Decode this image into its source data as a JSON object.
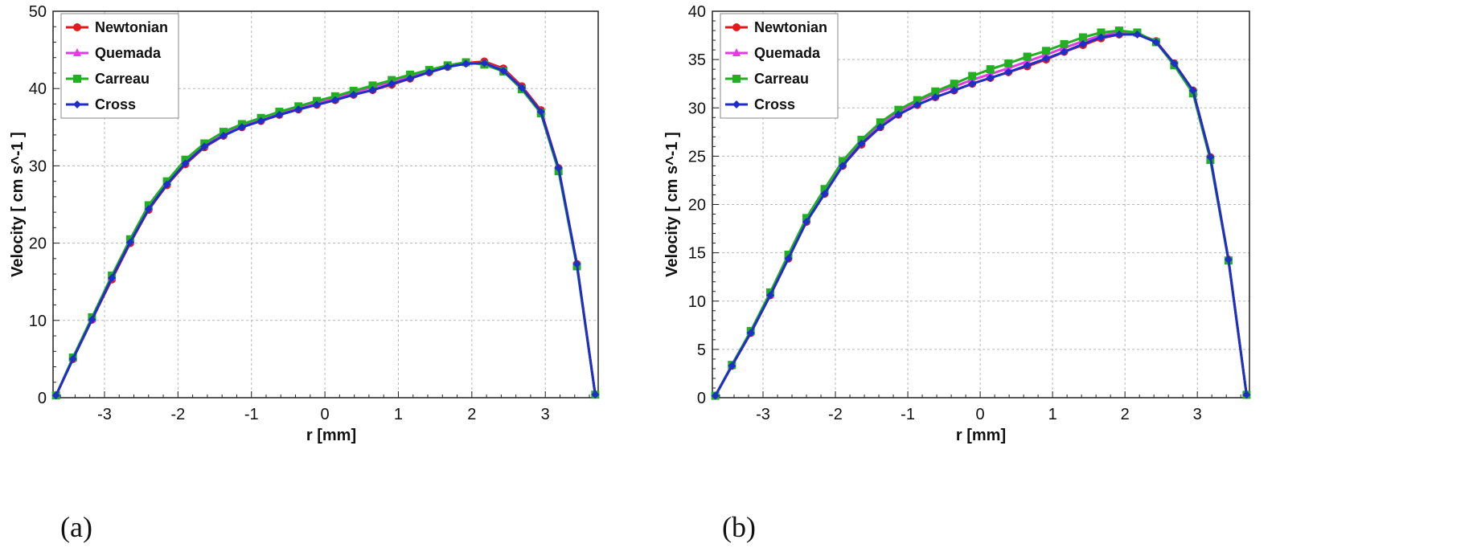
{
  "figure": {
    "panels": [
      {
        "panel_label": "(a)"
      },
      {
        "panel_label": "(b)"
      }
    ]
  },
  "chart_data": [
    {
      "type": "line",
      "xlabel": "r [mm]",
      "ylabel": "Velocity [ cm s^-1 ]",
      "xlim": [
        -3.7,
        3.72
      ],
      "ylim": [
        0,
        50
      ],
      "xticks": [
        -3,
        -2,
        -1,
        0,
        1,
        2,
        3
      ],
      "yticks": [
        0,
        10,
        20,
        30,
        40,
        50
      ],
      "grid": true,
      "legend": "top-left",
      "x": [
        -3.66,
        -3.43,
        -3.17,
        -2.9,
        -2.65,
        -2.4,
        -2.15,
        -1.9,
        -1.64,
        -1.38,
        -1.13,
        -0.87,
        -0.62,
        -0.36,
        -0.11,
        0.14,
        0.39,
        0.65,
        0.91,
        1.16,
        1.42,
        1.67,
        1.92,
        2.17,
        2.43,
        2.68,
        2.94,
        3.18,
        3.43,
        3.68
      ],
      "series": [
        {
          "name": "Newtonian",
          "color": "#e31a1c",
          "marker": "circle",
          "values": [
            0.3,
            5.0,
            10.1,
            15.3,
            20.0,
            24.3,
            27.5,
            30.2,
            32.4,
            33.9,
            35.0,
            35.8,
            36.6,
            37.3,
            37.9,
            38.5,
            39.2,
            39.8,
            40.5,
            41.3,
            42.1,
            42.8,
            43.3,
            43.5,
            42.6,
            40.3,
            37.2,
            29.7,
            17.3,
            0.4
          ]
        },
        {
          "name": "Quemada",
          "color": "#e838e8",
          "marker": "triangle",
          "values": [
            0.3,
            5.1,
            10.2,
            15.6,
            20.3,
            24.6,
            27.8,
            30.5,
            32.6,
            34.1,
            35.2,
            36.0,
            36.8,
            37.5,
            38.2,
            38.8,
            39.5,
            40.2,
            40.9,
            41.6,
            42.3,
            42.9,
            43.3,
            43.3,
            42.4,
            40.1,
            37.0,
            29.5,
            17.2,
            0.4
          ]
        },
        {
          "name": "Carreau",
          "color": "#22b022",
          "marker": "square",
          "values": [
            0.3,
            5.2,
            10.4,
            15.8,
            20.5,
            24.9,
            28.0,
            30.8,
            32.9,
            34.4,
            35.4,
            36.2,
            37.0,
            37.7,
            38.4,
            39.0,
            39.7,
            40.4,
            41.1,
            41.8,
            42.4,
            43.0,
            43.4,
            43.1,
            42.2,
            39.9,
            36.8,
            29.3,
            17.0,
            0.4
          ]
        },
        {
          "name": "Cross",
          "color": "#1f2ec9",
          "marker": "diamond",
          "values": [
            0.3,
            5.0,
            10.1,
            15.5,
            20.1,
            24.4,
            27.6,
            30.3,
            32.5,
            33.9,
            35.0,
            35.8,
            36.6,
            37.3,
            37.9,
            38.5,
            39.2,
            39.8,
            40.6,
            41.3,
            42.1,
            42.8,
            43.2,
            43.3,
            42.3,
            40.1,
            37.0,
            29.7,
            17.3,
            0.4
          ]
        }
      ]
    },
    {
      "type": "line",
      "xlabel": "r [mm]",
      "ylabel": "Velocity [ cm s^-1 ]",
      "xlim": [
        -3.7,
        3.72
      ],
      "ylim": [
        0,
        40
      ],
      "xticks": [
        -3,
        -2,
        -1,
        0,
        1,
        2,
        3
      ],
      "yticks": [
        0,
        5,
        10,
        15,
        20,
        25,
        30,
        35,
        40
      ],
      "grid": true,
      "legend": "top-left",
      "x": [
        -3.66,
        -3.43,
        -3.17,
        -2.9,
        -2.65,
        -2.4,
        -2.15,
        -1.9,
        -1.64,
        -1.38,
        -1.13,
        -0.87,
        -0.62,
        -0.36,
        -0.11,
        0.14,
        0.39,
        0.65,
        0.91,
        1.16,
        1.42,
        1.67,
        1.92,
        2.17,
        2.43,
        2.68,
        2.94,
        3.18,
        3.43,
        3.68
      ],
      "series": [
        {
          "name": "Newtonian",
          "color": "#e31a1c",
          "marker": "circle",
          "values": [
            0.2,
            3.3,
            6.7,
            10.6,
            14.4,
            18.2,
            21.1,
            24.0,
            26.2,
            28.0,
            29.3,
            30.3,
            31.1,
            31.8,
            32.5,
            33.1,
            33.7,
            34.3,
            35.0,
            35.8,
            36.5,
            37.2,
            37.6,
            37.7,
            36.9,
            34.6,
            31.8,
            24.9,
            14.3,
            0.3
          ]
        },
        {
          "name": "Quemada",
          "color": "#e838e8",
          "marker": "triangle",
          "values": [
            0.2,
            3.3,
            6.8,
            10.7,
            14.6,
            18.4,
            21.4,
            24.3,
            26.5,
            28.3,
            29.6,
            30.6,
            31.5,
            32.2,
            32.9,
            33.5,
            34.1,
            34.8,
            35.5,
            36.2,
            36.9,
            37.5,
            37.8,
            37.7,
            36.8,
            34.5,
            31.6,
            24.7,
            14.2,
            0.3
          ]
        },
        {
          "name": "Carreau",
          "color": "#22b022",
          "marker": "square",
          "values": [
            0.2,
            3.4,
            6.9,
            10.9,
            14.8,
            18.6,
            21.6,
            24.5,
            26.7,
            28.5,
            29.8,
            30.8,
            31.7,
            32.5,
            33.3,
            34.0,
            34.6,
            35.3,
            35.9,
            36.6,
            37.3,
            37.8,
            38.0,
            37.8,
            36.8,
            34.4,
            31.5,
            24.6,
            14.2,
            0.3
          ]
        },
        {
          "name": "Cross",
          "color": "#1f2ec9",
          "marker": "diamond",
          "values": [
            0.2,
            3.3,
            6.7,
            10.6,
            14.4,
            18.2,
            21.1,
            24.0,
            26.3,
            28.0,
            29.3,
            30.3,
            31.1,
            31.8,
            32.5,
            33.1,
            33.7,
            34.4,
            35.1,
            35.8,
            36.6,
            37.3,
            37.6,
            37.6,
            36.8,
            34.6,
            31.8,
            24.9,
            14.3,
            0.3
          ]
        }
      ]
    }
  ]
}
